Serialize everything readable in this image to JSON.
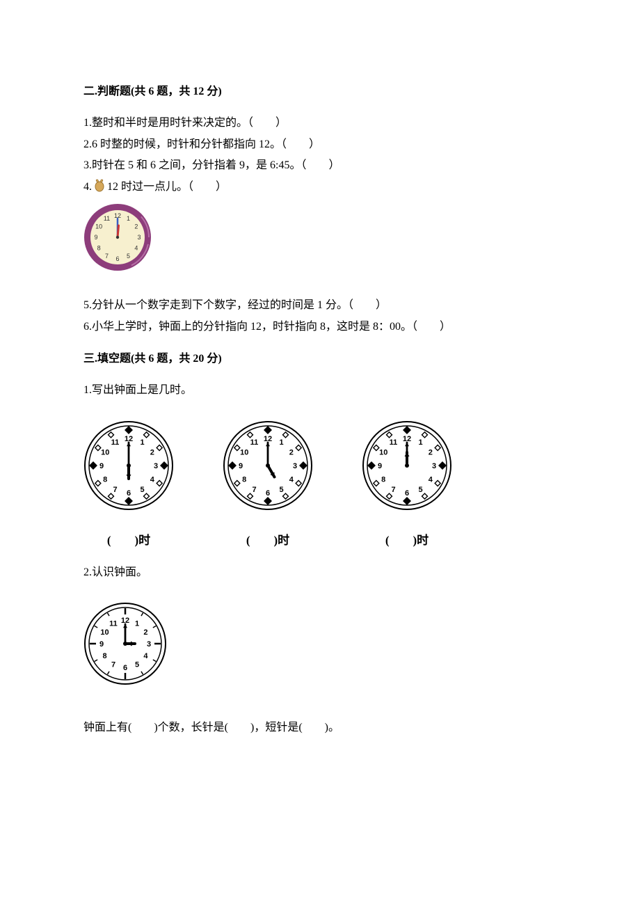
{
  "section2": {
    "heading": "二.判断题(共 6 题，共 12 分)",
    "q1": "1.整时和半时是用时针来决定的。（　　）",
    "q2": "2.6 时整的时候，时针和分针都指向 12。（　　）",
    "q3": "3.时针在 5 和 6 之间，分针指着 9，是 6:45。（　　）",
    "q4_prefix": "4.",
    "q4_text": "12 时过一点儿。（　　）",
    "q5": "5.分针从一个数字走到下个数字，经过的时间是 1 分。（　　）",
    "q6": "6.小华上学时，钟面上的分针指向 12，时针指向 8，这时是 8：00。（　　）"
  },
  "section3": {
    "heading": "三.填空题(共 6 题，共 20 分)",
    "q1": "1.写出钟面上是几时。",
    "clock_labels": [
      "(　　)时",
      "(　　)时",
      "(　　)时"
    ],
    "q2": "2.认识钟面。",
    "q2_fill": "钟面上有(　　)个数，长针是(　　)，短针是(　　)。"
  },
  "purple_clock": {
    "rim_color": "#8d3d7b",
    "face_color": "#f7f0cf",
    "hour_hand_color": "#c93434",
    "minute_hand_color": "#3960c4",
    "size": 98,
    "hour_angle": 5,
    "minute_angle": 0,
    "numbers": [
      "12",
      "1",
      "2",
      "3",
      "4",
      "5",
      "6",
      "7",
      "8",
      "9",
      "10",
      "11"
    ]
  },
  "bw_clocks": {
    "size": 130,
    "stroke": "#000000",
    "face": "#ffffff",
    "numbers": [
      "12",
      "1",
      "2",
      "3",
      "4",
      "5",
      "6",
      "7",
      "8",
      "9",
      "10",
      "11"
    ],
    "clocks": [
      {
        "hour_angle": 180,
        "minute_angle": 0
      },
      {
        "hour_angle": 150,
        "minute_angle": 0
      },
      {
        "hour_angle": 0,
        "minute_angle": 0
      }
    ]
  },
  "bw_clock_q2": {
    "size": 120,
    "stroke": "#000000",
    "face": "#ffffff",
    "numbers": [
      "12",
      "1",
      "2",
      "3",
      "4",
      "5",
      "6",
      "7",
      "8",
      "9",
      "10",
      "11"
    ],
    "hour_angle": 90,
    "minute_angle": 0
  },
  "small_icon": {
    "fill": "#d6a85a",
    "stroke": "#9c7430"
  }
}
